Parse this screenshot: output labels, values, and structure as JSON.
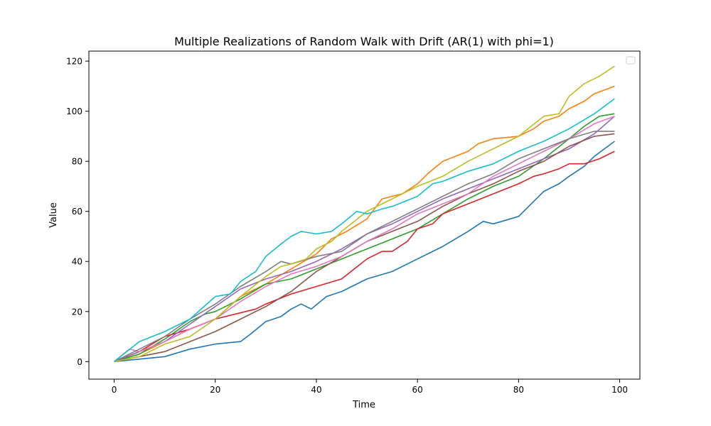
{
  "chart_data": {
    "type": "line",
    "title": "Multiple Realizations of Random Walk with Drift (AR(1) with phi=1)",
    "xlabel": "Time",
    "ylabel": "Value",
    "xlim": [
      -5,
      104
    ],
    "ylim": [
      -7,
      124
    ],
    "xticks": [
      0,
      20,
      40,
      60,
      80,
      100
    ],
    "yticks": [
      0,
      20,
      40,
      60,
      80,
      100,
      120
    ],
    "grid": false,
    "legend": "top-right",
    "series": [
      {
        "color": "#1f77b4",
        "points": [
          [
            0,
            0
          ],
          [
            5,
            1
          ],
          [
            10,
            2
          ],
          [
            15,
            5
          ],
          [
            20,
            7
          ],
          [
            25,
            8
          ],
          [
            27,
            11
          ],
          [
            30,
            16
          ],
          [
            33,
            18
          ],
          [
            35,
            21
          ],
          [
            37,
            23
          ],
          [
            39,
            21
          ],
          [
            42,
            26
          ],
          [
            45,
            28
          ],
          [
            48,
            31
          ],
          [
            50,
            33
          ],
          [
            55,
            36
          ],
          [
            60,
            41
          ],
          [
            65,
            46
          ],
          [
            70,
            52
          ],
          [
            73,
            56
          ],
          [
            75,
            55
          ],
          [
            80,
            58
          ],
          [
            82,
            62
          ],
          [
            85,
            68
          ],
          [
            88,
            71
          ],
          [
            90,
            74
          ],
          [
            93,
            78
          ],
          [
            95,
            82
          ],
          [
            99,
            88
          ]
        ]
      },
      {
        "color": "#ff7f0e",
        "points": [
          [
            0,
            0
          ],
          [
            5,
            3
          ],
          [
            10,
            8
          ],
          [
            15,
            13
          ],
          [
            20,
            17
          ],
          [
            25,
            26
          ],
          [
            30,
            31
          ],
          [
            35,
            37
          ],
          [
            40,
            43
          ],
          [
            43,
            49
          ],
          [
            46,
            52
          ],
          [
            50,
            57
          ],
          [
            53,
            65
          ],
          [
            57,
            67
          ],
          [
            60,
            71
          ],
          [
            62,
            75
          ],
          [
            65,
            80
          ],
          [
            70,
            84
          ],
          [
            72,
            87
          ],
          [
            75,
            89
          ],
          [
            80,
            90
          ],
          [
            83,
            93
          ],
          [
            85,
            96
          ],
          [
            88,
            98
          ],
          [
            90,
            101
          ],
          [
            93,
            104
          ],
          [
            95,
            107
          ],
          [
            99,
            110
          ]
        ]
      },
      {
        "color": "#2ca02c",
        "points": [
          [
            0,
            0
          ],
          [
            5,
            3
          ],
          [
            10,
            9
          ],
          [
            15,
            16
          ],
          [
            18,
            19
          ],
          [
            20,
            20
          ],
          [
            25,
            25
          ],
          [
            30,
            31
          ],
          [
            35,
            33
          ],
          [
            40,
            37
          ],
          [
            45,
            41
          ],
          [
            50,
            45
          ],
          [
            55,
            49
          ],
          [
            60,
            53
          ],
          [
            65,
            59
          ],
          [
            70,
            65
          ],
          [
            75,
            70
          ],
          [
            80,
            74
          ],
          [
            85,
            81
          ],
          [
            90,
            89
          ],
          [
            93,
            94
          ],
          [
            96,
            98
          ],
          [
            99,
            99
          ]
        ]
      },
      {
        "color": "#d62728",
        "points": [
          [
            0,
            0
          ],
          [
            5,
            4
          ],
          [
            10,
            10
          ],
          [
            15,
            13
          ],
          [
            20,
            17
          ],
          [
            24,
            19
          ],
          [
            28,
            21
          ],
          [
            30,
            23
          ],
          [
            35,
            27
          ],
          [
            40,
            30
          ],
          [
            45,
            33
          ],
          [
            50,
            41
          ],
          [
            53,
            44
          ],
          [
            55,
            44
          ],
          [
            58,
            48
          ],
          [
            60,
            53
          ],
          [
            63,
            55
          ],
          [
            65,
            59
          ],
          [
            70,
            63
          ],
          [
            75,
            67
          ],
          [
            80,
            71
          ],
          [
            83,
            74
          ],
          [
            85,
            75
          ],
          [
            88,
            77
          ],
          [
            90,
            79
          ],
          [
            93,
            79
          ],
          [
            96,
            81
          ],
          [
            99,
            84
          ]
        ]
      },
      {
        "color": "#9467bd",
        "points": [
          [
            0,
            0
          ],
          [
            5,
            4
          ],
          [
            10,
            8
          ],
          [
            15,
            15
          ],
          [
            20,
            22
          ],
          [
            25,
            29
          ],
          [
            30,
            33
          ],
          [
            35,
            36
          ],
          [
            40,
            40
          ],
          [
            45,
            45
          ],
          [
            50,
            51
          ],
          [
            55,
            55
          ],
          [
            60,
            60
          ],
          [
            65,
            65
          ],
          [
            70,
            69
          ],
          [
            75,
            73
          ],
          [
            80,
            77
          ],
          [
            85,
            81
          ],
          [
            90,
            85
          ],
          [
            95,
            91
          ],
          [
            99,
            98
          ]
        ]
      },
      {
        "color": "#8c564b",
        "points": [
          [
            0,
            0
          ],
          [
            5,
            2
          ],
          [
            10,
            4
          ],
          [
            15,
            8
          ],
          [
            20,
            12
          ],
          [
            25,
            17
          ],
          [
            30,
            22
          ],
          [
            35,
            28
          ],
          [
            40,
            36
          ],
          [
            45,
            42
          ],
          [
            50,
            48
          ],
          [
            55,
            52
          ],
          [
            60,
            56
          ],
          [
            65,
            62
          ],
          [
            70,
            67
          ],
          [
            75,
            71
          ],
          [
            80,
            76
          ],
          [
            85,
            80
          ],
          [
            90,
            86
          ],
          [
            95,
            90
          ],
          [
            99,
            91
          ]
        ]
      },
      {
        "color": "#e377c2",
        "points": [
          [
            0,
            0
          ],
          [
            3,
            5
          ],
          [
            5,
            4
          ],
          [
            10,
            8
          ],
          [
            15,
            13
          ],
          [
            20,
            17
          ],
          [
            25,
            24
          ],
          [
            30,
            30
          ],
          [
            35,
            35
          ],
          [
            40,
            38
          ],
          [
            45,
            42
          ],
          [
            50,
            48
          ],
          [
            55,
            53
          ],
          [
            60,
            59
          ],
          [
            65,
            63
          ],
          [
            70,
            67
          ],
          [
            75,
            74
          ],
          [
            80,
            79
          ],
          [
            85,
            84
          ],
          [
            90,
            89
          ],
          [
            95,
            95
          ],
          [
            99,
            98
          ]
        ]
      },
      {
        "color": "#7f7f7f",
        "points": [
          [
            0,
            0
          ],
          [
            5,
            5
          ],
          [
            10,
            10
          ],
          [
            15,
            17
          ],
          [
            20,
            23
          ],
          [
            25,
            30
          ],
          [
            30,
            36
          ],
          [
            33,
            40
          ],
          [
            35,
            39
          ],
          [
            40,
            42
          ],
          [
            45,
            44
          ],
          [
            50,
            51
          ],
          [
            55,
            56
          ],
          [
            60,
            61
          ],
          [
            65,
            66
          ],
          [
            70,
            71
          ],
          [
            75,
            75
          ],
          [
            80,
            81
          ],
          [
            85,
            85
          ],
          [
            90,
            89
          ],
          [
            95,
            92
          ],
          [
            99,
            92
          ]
        ]
      },
      {
        "color": "#bcbd22",
        "points": [
          [
            0,
            0
          ],
          [
            5,
            2
          ],
          [
            10,
            7
          ],
          [
            15,
            10
          ],
          [
            20,
            17
          ],
          [
            25,
            26
          ],
          [
            30,
            34
          ],
          [
            33,
            38
          ],
          [
            35,
            39
          ],
          [
            38,
            41
          ],
          [
            40,
            45
          ],
          [
            43,
            48
          ],
          [
            45,
            52
          ],
          [
            50,
            60
          ],
          [
            55,
            65
          ],
          [
            58,
            68
          ],
          [
            60,
            70
          ],
          [
            65,
            74
          ],
          [
            70,
            80
          ],
          [
            75,
            85
          ],
          [
            80,
            90
          ],
          [
            85,
            98
          ],
          [
            88,
            99
          ],
          [
            90,
            106
          ],
          [
            93,
            111
          ],
          [
            96,
            114
          ],
          [
            99,
            118
          ]
        ]
      },
      {
        "color": "#17becf",
        "points": [
          [
            0,
            0
          ],
          [
            5,
            8
          ],
          [
            10,
            12
          ],
          [
            15,
            17
          ],
          [
            20,
            26
          ],
          [
            23,
            27
          ],
          [
            25,
            32
          ],
          [
            28,
            36
          ],
          [
            30,
            42
          ],
          [
            33,
            47
          ],
          [
            35,
            50
          ],
          [
            37,
            52
          ],
          [
            40,
            51
          ],
          [
            43,
            52
          ],
          [
            45,
            55
          ],
          [
            48,
            60
          ],
          [
            50,
            59
          ],
          [
            53,
            61
          ],
          [
            55,
            62
          ],
          [
            60,
            66
          ],
          [
            63,
            71
          ],
          [
            65,
            72
          ],
          [
            70,
            76
          ],
          [
            75,
            79
          ],
          [
            80,
            84
          ],
          [
            85,
            88
          ],
          [
            90,
            93
          ],
          [
            95,
            99
          ],
          [
            99,
            105
          ]
        ]
      }
    ]
  }
}
